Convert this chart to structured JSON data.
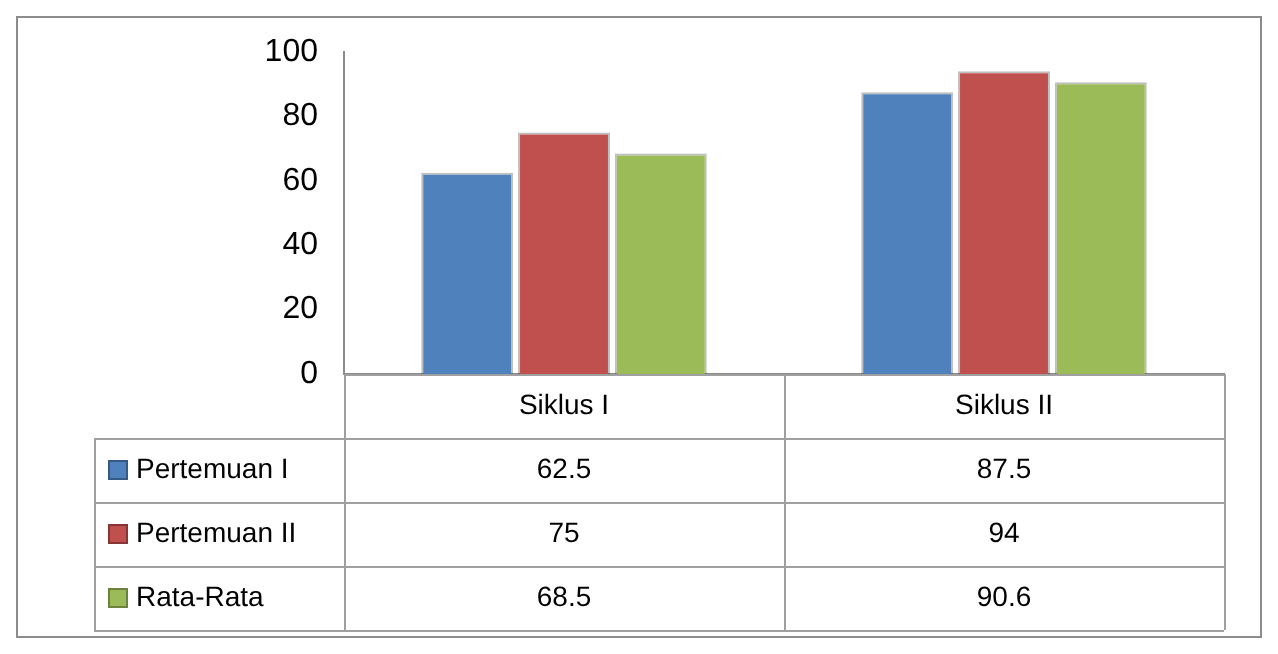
{
  "chart_data": {
    "type": "bar",
    "categories": [
      "Siklus I",
      "Siklus II"
    ],
    "series": [
      {
        "name": "Pertemuan I",
        "color": "#4f81bd",
        "values": [
          62.5,
          87.5
        ]
      },
      {
        "name": "Pertemuan II",
        "color": "#c0504d",
        "values": [
          75,
          94
        ]
      },
      {
        "name": "Rata-Rata",
        "color": "#9bbb59",
        "values": [
          68.5,
          90.6
        ]
      }
    ],
    "ylim": [
      0,
      100
    ],
    "yticks": [
      0,
      20,
      40,
      60,
      80,
      100
    ],
    "grid": false,
    "legend": "bottom left",
    "data_labels": true
  }
}
